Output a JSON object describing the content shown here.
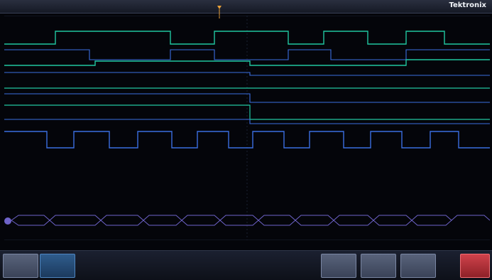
{
  "topbar": {
    "segment_a": "",
    "segment_b": "",
    "segment_c": "",
    "brand": "Tektronix"
  },
  "channel_labels": [
    "",
    "",
    "",
    "",
    "",
    "",
    "",
    "",
    ""
  ],
  "bus": {
    "label": "",
    "values": [
      "",
      "",
      "",
      "",
      "",
      "",
      "",
      "",
      "",
      "",
      "",
      "",
      ""
    ]
  },
  "bottom_menu": {
    "btn1": "",
    "btn2": "",
    "readout": "",
    "btn3": "",
    "btn4": "",
    "btn5": "",
    "btn6": ""
  },
  "colors": {
    "digital_green": "#20c6a0",
    "digital_blue": "#3a6ee0",
    "bus_purple": "#6e63c9",
    "grid": "#1a2133"
  }
}
